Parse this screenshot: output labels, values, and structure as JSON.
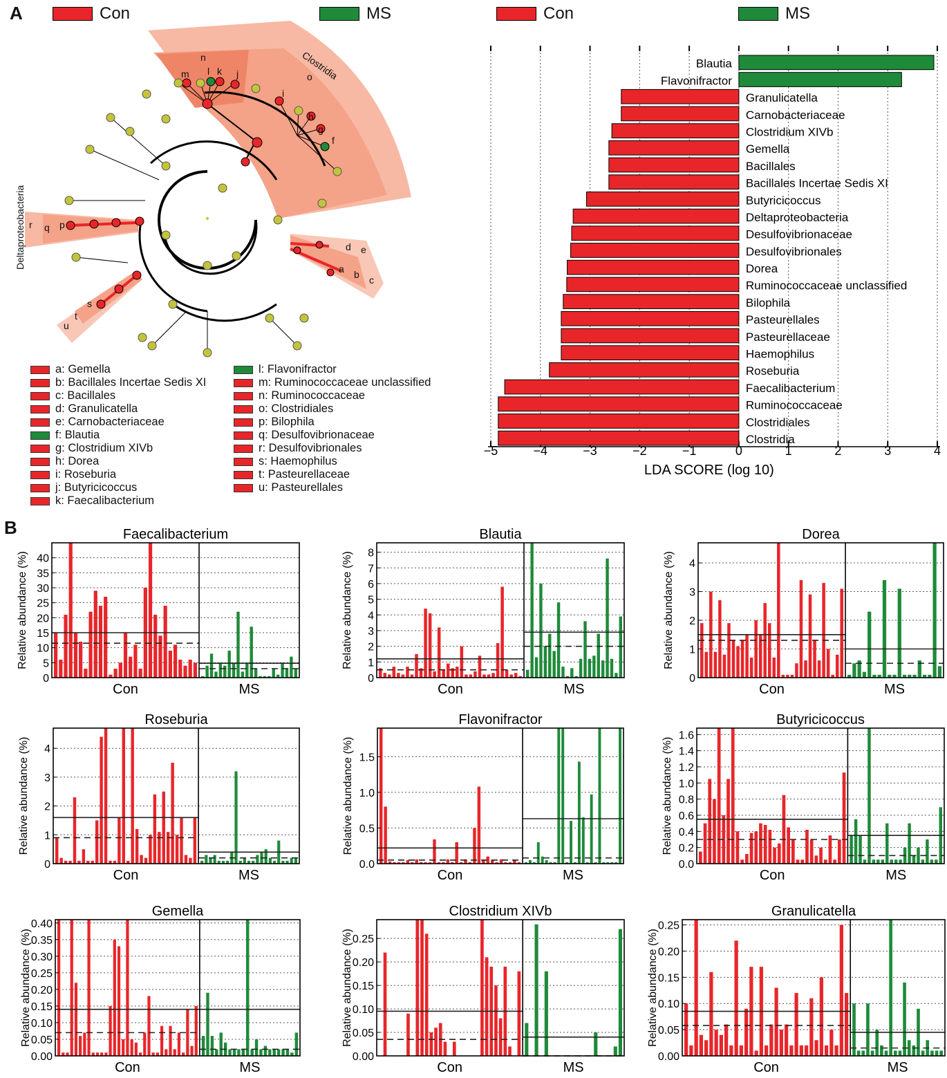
{
  "panel_labels": {
    "a": "A",
    "b": "B"
  },
  "colors": {
    "con": "#e8262a",
    "ms": "#1f8a3a",
    "node": "#c4c43a",
    "sector_light": "#f7b9a4",
    "sector_dark": "#ef8567"
  },
  "group_legend": [
    {
      "label": "Con",
      "color": "#e8262a"
    },
    {
      "label": "MS",
      "color": "#1f8a3a"
    }
  ],
  "cladogram": {
    "sector_labels": [
      "Clostridia",
      "o",
      "n",
      "Deltaproteobacteria"
    ],
    "node_letters": [
      "m",
      "l",
      "k",
      "j",
      "i",
      "h",
      "g",
      "f",
      "r",
      "q",
      "p",
      "e",
      "d",
      "a",
      "b",
      "c",
      "s",
      "t",
      "u"
    ],
    "legend_left": [
      {
        "text": "a: Gemella",
        "group": "Con"
      },
      {
        "text": "b: Bacillales Incertae Sedis XI",
        "group": "Con"
      },
      {
        "text": "c: Bacillales",
        "group": "Con"
      },
      {
        "text": "d: Granulicatella",
        "group": "Con"
      },
      {
        "text": "e: Carnobacteriaceae",
        "group": "Con"
      },
      {
        "text": "f: Blautia",
        "group": "MS"
      },
      {
        "text": "g: Clostridium XIVb",
        "group": "Con"
      },
      {
        "text": "h: Dorea",
        "group": "Con"
      },
      {
        "text": "i: Roseburia",
        "group": "Con"
      },
      {
        "text": "j: Butyricicoccus",
        "group": "Con"
      },
      {
        "text": "k: Faecalibacterium",
        "group": "Con"
      }
    ],
    "legend_right": [
      {
        "text": "l: Flavonifractor",
        "group": "MS"
      },
      {
        "text": "m: Ruminococcaceae unclassified",
        "group": "Con"
      },
      {
        "text": "n: Ruminococcaceae",
        "group": "Con"
      },
      {
        "text": "o: Clostridiales",
        "group": "Con"
      },
      {
        "text": "p: Bilophila",
        "group": "Con"
      },
      {
        "text": "q: Desulfovibrionaceae",
        "group": "Con"
      },
      {
        "text": "r: Desulfovibrionales",
        "group": "Con"
      },
      {
        "text": "s: Haemophilus",
        "group": "Con"
      },
      {
        "text": "t: Pasteurellaceae",
        "group": "Con"
      },
      {
        "text": "u: Pasteurellales",
        "group": "Con"
      }
    ]
  },
  "chart_data": [
    {
      "type": "bar",
      "orientation": "horizontal",
      "id": "lda",
      "xlabel": "LDA SCORE (log 10)",
      "xlim": [
        -5,
        4
      ],
      "xticks": [
        "−5",
        "−4",
        "−3",
        "−2",
        "−1",
        "0",
        "1",
        "2",
        "3",
        "4"
      ],
      "grid": true,
      "categories": [
        "Blautia",
        "Flavonifractor",
        "Granulicatella",
        "Carnobacteriaceae",
        "Clostridium XIVb",
        "Gemella",
        "Bacillales",
        "Bacillales Incertae Sedis XI",
        "Butyricicoccus",
        "Deltaproteobacteria",
        "Desulfovibrionaceae",
        "Desulfovibrionales",
        "Dorea",
        "Ruminococcaceae unclassified",
        "Bilophila",
        "Pasteurellales",
        "Pasteurellaceae",
        "Haemophilus",
        "Roseburia",
        "Faecalibacterium",
        "Ruminococcaceae",
        "Clostridiales",
        "Clostridia"
      ],
      "values": [
        3.93,
        3.28,
        -2.37,
        -2.37,
        -2.56,
        -2.62,
        -2.62,
        -2.62,
        -3.07,
        -3.34,
        -3.37,
        -3.39,
        -3.46,
        -3.47,
        -3.54,
        -3.58,
        -3.58,
        -3.58,
        -3.82,
        -4.72,
        -4.85,
        -4.85,
        -4.85
      ],
      "groups": [
        "MS",
        "MS",
        "Con",
        "Con",
        "Con",
        "Con",
        "Con",
        "Con",
        "Con",
        "Con",
        "Con",
        "Con",
        "Con",
        "Con",
        "Con",
        "Con",
        "Con",
        "Con",
        "Con",
        "Con",
        "Con",
        "Con",
        "Con"
      ]
    },
    {
      "type": "bar",
      "id": "faecalibacterium",
      "title": "Faecalibacterium",
      "ylabel": "Relative abundance (%)",
      "ylim": [
        0,
        45
      ],
      "yticks": [
        "0",
        "5",
        "10",
        "15",
        "20",
        "25",
        "30",
        "35",
        "40"
      ],
      "ytick_values": [
        0,
        5,
        10,
        15,
        20,
        25,
        30,
        35,
        40
      ],
      "con_label": "Con",
      "ms_label": "MS",
      "con_values": [
        15,
        6,
        21,
        45,
        15,
        12,
        3,
        22,
        29,
        24,
        27,
        1,
        3,
        5,
        15,
        7,
        11,
        3,
        30,
        45,
        21,
        14,
        24,
        9,
        11,
        6,
        4,
        6,
        5
      ],
      "ms_values": [
        0.5,
        4,
        8,
        2,
        5,
        4,
        9,
        5,
        22,
        2,
        5,
        17,
        3,
        0.5,
        0.5,
        0.5,
        3,
        1,
        5,
        3,
        7,
        3
      ],
      "con_mean": 15,
      "con_median": 11.5,
      "ms_mean": 4.8,
      "ms_median": 3
    },
    {
      "type": "bar",
      "id": "blautia",
      "title": "Blautia",
      "ylabel": "Relative abundance (%)",
      "ylim": [
        0,
        8.6
      ],
      "yticks": [
        "0",
        "1",
        "2",
        "3",
        "4",
        "5",
        "6",
        "7",
        "8"
      ],
      "ytick_values": [
        0,
        1,
        2,
        3,
        4,
        5,
        6,
        7,
        8
      ],
      "con_label": "Con",
      "ms_label": "MS",
      "con_values": [
        0.6,
        0.3,
        0.2,
        0.7,
        0.3,
        0.2,
        0.7,
        0.2,
        1.5,
        0.6,
        4.4,
        4.1,
        0.4,
        3.2,
        0.5,
        0.9,
        0.6,
        0.7,
        2.0,
        0.2,
        0.2,
        0.4,
        1.4,
        0.2,
        0.2,
        0.3,
        2.2,
        5.8,
        0.5,
        0.2,
        0.3,
        0.1
      ],
      "ms_values": [
        0.5,
        8.6,
        1.3,
        6.0,
        2.0,
        2.8,
        1.7,
        4.8,
        0.7,
        0.1,
        0.6,
        0.1,
        1.2,
        3.6,
        1.2,
        1.4,
        2.8,
        1.1,
        7.6,
        1.2,
        0.3,
        3.9
      ],
      "con_mean": 1.2,
      "con_median": 0.5,
      "ms_mean": 2.9,
      "ms_median": 2.0
    },
    {
      "type": "bar",
      "id": "dorea",
      "title": "Dorea",
      "ylabel": "Relative abundance (%)",
      "ylim": [
        0,
        4.7
      ],
      "yticks": [
        "0",
        "1",
        "2",
        "3",
        "4"
      ],
      "ytick_values": [
        0,
        1,
        2,
        3,
        4
      ],
      "con_label": "Con",
      "ms_label": "MS",
      "con_values": [
        1.9,
        0.9,
        3.0,
        0.9,
        2.7,
        0.8,
        1.9,
        1.3,
        1.1,
        1.3,
        1.5,
        0.7,
        2.0,
        1.5,
        2.6,
        1.9,
        0.7,
        4.7,
        0.1,
        0.1,
        0.1,
        0.5,
        3.4,
        0.6,
        2.9,
        1.3,
        0.6,
        3.3,
        1.0,
        0.1,
        0.8,
        3.1
      ],
      "ms_values": [
        0.1,
        0.5,
        0.6,
        0.2,
        2.3,
        0.1,
        0.1,
        3.4,
        0.1,
        0.1,
        3.1,
        0.1,
        0.1,
        0.1,
        0.6,
        0.1,
        0.1,
        4.7,
        0.4
      ],
      "con_mean": 1.5,
      "con_median": 1.3,
      "ms_mean": 1.0,
      "ms_median": 0.5
    },
    {
      "type": "bar",
      "id": "roseburia",
      "title": "Roseburia",
      "ylabel": "Relative abundance (%)",
      "ylim": [
        0,
        4.7
      ],
      "yticks": [
        "0",
        "1",
        "2",
        "3",
        "4"
      ],
      "ytick_values": [
        0,
        1,
        2,
        3,
        4
      ],
      "con_label": "Con",
      "ms_label": "MS",
      "con_values": [
        0.9,
        0.2,
        0.1,
        0.1,
        2.3,
        0.1,
        0.5,
        0.1,
        0.1,
        1.5,
        4.4,
        4.7,
        0.1,
        0.1,
        1.6,
        4.7,
        0.1,
        4.7,
        1.2,
        0.3,
        0.2,
        1.0,
        2.4,
        1.1,
        2.5,
        1.1,
        3.5,
        1.0,
        1.6,
        0.3,
        0.2,
        1.6
      ],
      "ms_values": [
        0.1,
        0.3,
        0.2,
        0.3,
        0.1,
        0.1,
        0.1,
        0.4,
        3.2,
        0.1,
        0.2,
        0.1,
        0.1,
        0.3,
        0.4,
        0.5,
        0.2,
        0.1,
        0.8,
        0.1,
        0.1,
        0.2,
        0.2
      ],
      "con_mean": 1.6,
      "con_median": 0.9,
      "ms_mean": 0.4,
      "ms_median": 0.2
    },
    {
      "type": "bar",
      "id": "flavonifractor",
      "title": "Flavonifractor",
      "ylabel": "Relative abundance (%)",
      "ylim": [
        0,
        1.9
      ],
      "yticks": [
        "0.0",
        "0.5",
        "1.0",
        "1.5"
      ],
      "ytick_values": [
        0,
        0.5,
        1.0,
        1.5
      ],
      "con_label": "Con",
      "ms_label": "MS",
      "con_values": [
        1.9,
        0.8,
        0.03,
        0.02,
        0.02,
        0.02,
        0.05,
        0.02,
        0.06,
        0.02,
        0.02,
        0.02,
        0.34,
        0.02,
        0.02,
        0.06,
        0.02,
        0.3,
        0.02,
        0.06,
        0.02,
        0.5,
        1.08,
        0.05,
        0.1,
        0.05,
        0.02,
        0.06,
        0.02,
        0.02,
        0.05,
        0.02
      ],
      "ms_values": [
        0.02,
        0.05,
        0.02,
        0.3,
        0.1,
        0.05,
        0.02,
        0.02,
        1.9,
        1.9,
        0.02,
        0.6,
        0.02,
        1.43,
        0.65,
        0.02,
        0.97,
        0.02,
        1.9,
        0.02,
        0.02,
        0.02,
        0.02,
        1.9
      ],
      "con_mean": 0.22,
      "con_median": 0.05,
      "ms_mean": 0.63,
      "ms_median": 0.08
    },
    {
      "type": "bar",
      "id": "butyricicoccus",
      "title": "Butyricicoccus",
      "ylabel": "Relative abundance (%)",
      "ylim": [
        0,
        1.68
      ],
      "yticks": [
        "0.0",
        "0.2",
        "0.4",
        "0.6",
        "0.8",
        "1.0",
        "1.2",
        "1.4",
        "1.6"
      ],
      "ytick_values": [
        0,
        0.2,
        0.4,
        0.6,
        0.8,
        1.0,
        1.2,
        1.4,
        1.6
      ],
      "con_label": "Con",
      "ms_label": "MS",
      "con_values": [
        0.15,
        0.5,
        1.05,
        0.8,
        1.68,
        0.6,
        1.05,
        1.68,
        0.4,
        0.05,
        0.12,
        0.38,
        0.4,
        0.5,
        0.48,
        0.42,
        0.2,
        0.25,
        0.85,
        0.45,
        0.3,
        0.05,
        0.05,
        0.42,
        0.3,
        0.1,
        0.2,
        0.05,
        0.35,
        0.05,
        0.3,
        1.13
      ],
      "ms_values": [
        0.35,
        0.55,
        0.35,
        0.05,
        1.68,
        0.05,
        0.05,
        0.05,
        0.5,
        0.05,
        0.05,
        0.05,
        0.2,
        0.5,
        0.1,
        0.2,
        0.05,
        0.3,
        0.05,
        0.05,
        0.7
      ],
      "con_mean": 0.55,
      "con_median": 0.3,
      "ms_mean": 0.35,
      "ms_median": 0.1
    },
    {
      "type": "bar",
      "id": "gemella",
      "title": "Gemella",
      "ylabel": "Relative abundance (%)",
      "ylim": [
        0,
        0.41
      ],
      "yticks": [
        "0.00",
        "0.05",
        "0.10",
        "0.15",
        "0.20",
        "0.25",
        "0.30",
        "0.35",
        "0.40"
      ],
      "ytick_values": [
        0,
        0.05,
        0.1,
        0.15,
        0.2,
        0.25,
        0.3,
        0.35,
        0.4
      ],
      "con_label": "Con",
      "ms_label": "MS",
      "con_values": [
        0.41,
        0.01,
        0.01,
        0.41,
        0.22,
        0.06,
        0.07,
        0.41,
        0.01,
        0.01,
        0.01,
        0.01,
        0.15,
        0.35,
        0.33,
        0.05,
        0.41,
        0.05,
        0.04,
        0.01,
        0.07,
        0.18,
        0.01,
        0.01,
        0.09,
        0.02,
        0.09,
        0.02,
        0.07,
        0.01,
        0.14,
        0.03,
        0.15
      ],
      "ms_values": [
        0.06,
        0.19,
        0.06,
        0.02,
        0.07,
        0.04,
        0.02,
        0.02,
        0.02,
        0.02,
        0.41,
        0.02,
        0.05,
        0.02,
        0.03,
        0.02,
        0.02,
        0.02,
        0.02,
        0.02,
        0.01,
        0.07
      ],
      "con_mean": 0.14,
      "con_median": 0.07,
      "ms_mean": 0.14,
      "ms_median": 0.02
    },
    {
      "type": "bar",
      "id": "clostridium-xivb",
      "title": "Clostridium XIVb",
      "ylabel": "Relative abundance (%)",
      "ylim": [
        0,
        0.29
      ],
      "yticks": [
        "0.00",
        "0.05",
        "0.10",
        "0.15",
        "0.20",
        "0.25"
      ],
      "ytick_values": [
        0,
        0.05,
        0.1,
        0.15,
        0.2,
        0.25
      ],
      "con_label": "Con",
      "ms_label": "MS",
      "con_values": [
        0,
        0.22,
        0,
        0,
        0,
        0,
        0.09,
        0,
        0.29,
        0.29,
        0.26,
        0.05,
        0.06,
        0.07,
        0.03,
        0,
        0.03,
        0,
        0,
        0,
        0,
        0,
        0.29,
        0.21,
        0.19,
        0.15,
        0.08,
        0.19,
        0.02,
        0,
        0.18
      ],
      "ms_values": [
        0.07,
        0,
        0.28,
        0,
        0.18,
        0,
        0,
        0,
        0,
        0,
        0,
        0,
        0,
        0,
        0.05,
        0,
        0,
        0,
        0.02,
        0.27
      ],
      "con_mean": 0.095,
      "con_median": 0.035,
      "ms_mean": 0.04,
      "ms_median": 0
    },
    {
      "type": "bar",
      "id": "granulicatella",
      "title": "Granulicatella",
      "ylabel": "Relative abundance (%)",
      "ylim": [
        0,
        0.26
      ],
      "yticks": [
        "0.00",
        "0.05",
        "0.10",
        "0.15",
        "0.20",
        "0.25"
      ],
      "ytick_values": [
        0,
        0.05,
        0.1,
        0.15,
        0.2,
        0.25
      ],
      "con_label": "Con",
      "ms_label": "MS",
      "con_values": [
        0.1,
        0.02,
        0.26,
        0.04,
        0.03,
        0.16,
        0.05,
        0.04,
        0.06,
        0.02,
        0.22,
        0.02,
        0.09,
        0.17,
        0.01,
        0.17,
        0.02,
        0.06,
        0.13,
        0.05,
        0.06,
        0.02,
        0.12,
        0.02,
        0.02,
        0.11,
        0.03,
        0.15,
        0.02,
        0.05,
        0.02,
        0.25,
        0.12
      ],
      "ms_values": [
        0.1,
        0.01,
        0.01,
        0.1,
        0.01,
        0.05,
        0.02,
        0.01,
        0.26,
        0.01,
        0.01,
        0.14,
        0.03,
        0.02,
        0.09,
        0.01,
        0.03,
        0.01,
        0.01,
        0.01
      ],
      "con_mean": 0.085,
      "con_median": 0.058,
      "ms_mean": 0.045,
      "ms_median": 0.015
    }
  ]
}
